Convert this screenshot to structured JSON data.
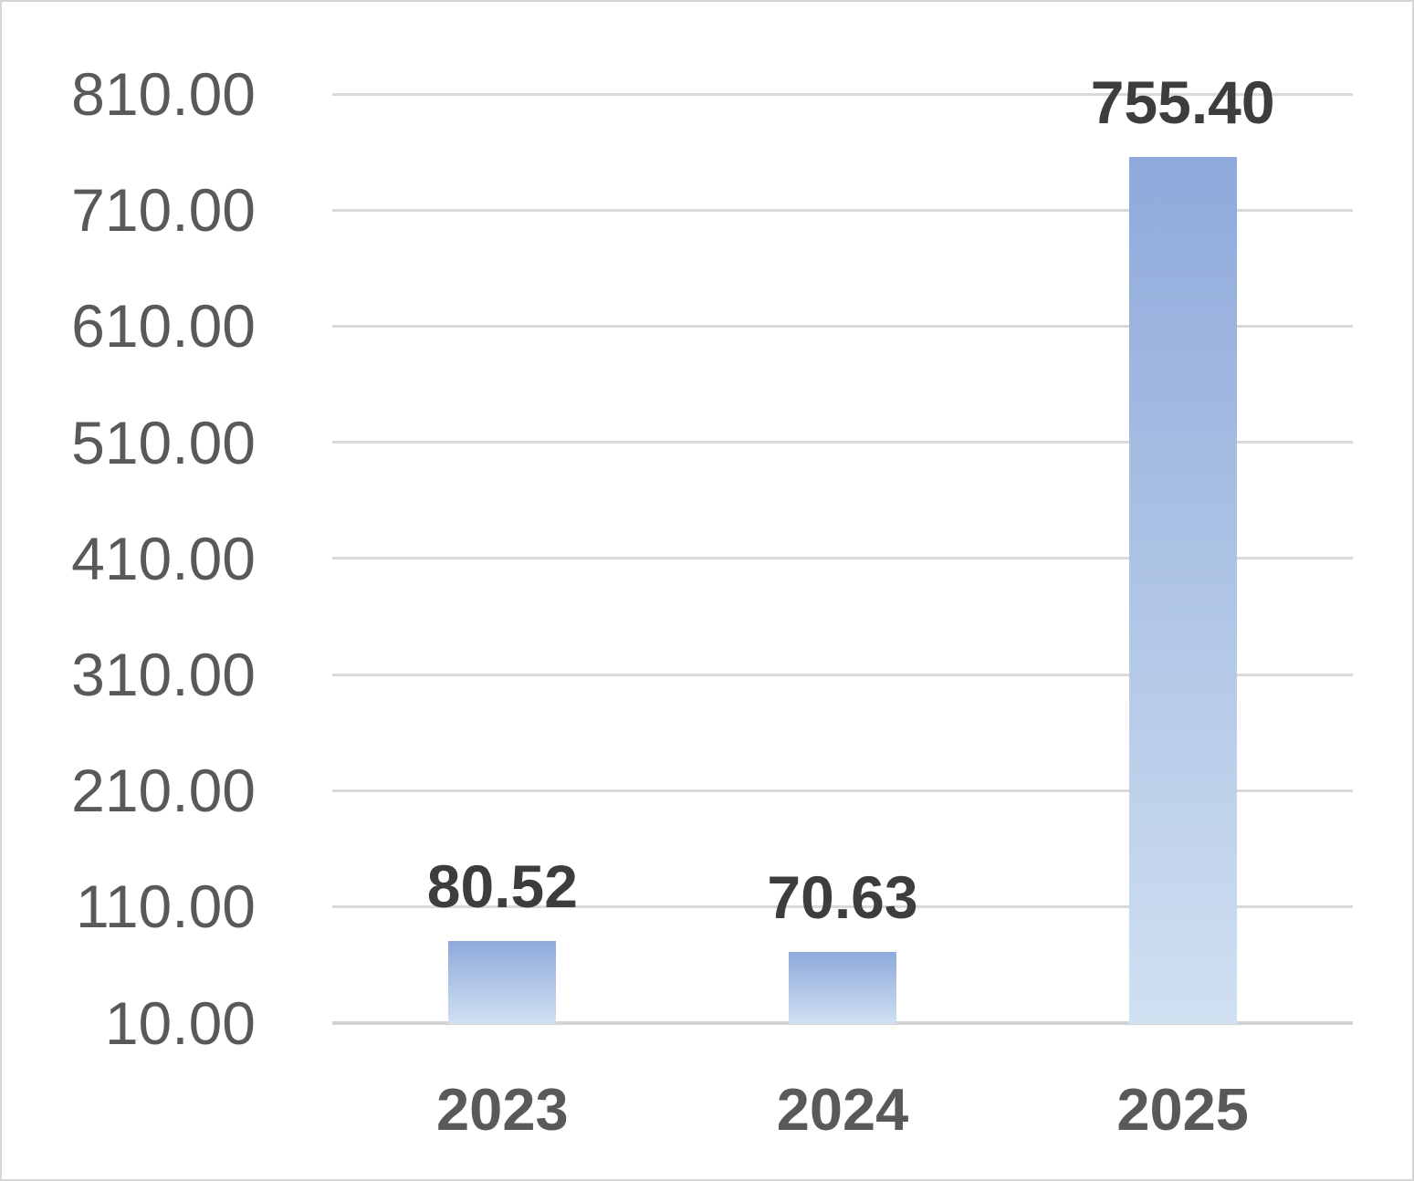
{
  "chart": {
    "colors": {
      "background": "#FFFFFF",
      "border_color": "#D5D5D5",
      "gridline_color": "#D9D9D9",
      "axis_line_color": "#D3D3D3",
      "bar_gradient_top": "#8EA9DB",
      "bar_gradient_bottom": "#D0E0F1",
      "axis_label_color": "#595959",
      "data_label_color": "#3D3D3D",
      "category_label_color": "#595959"
    }
  },
  "chart_data": {
    "type": "bar",
    "title": "",
    "xlabel": "",
    "ylabel": "",
    "categories": [
      "2023",
      "2024",
      "2025"
    ],
    "values": [
      80.52,
      70.63,
      755.4
    ],
    "data_labels": [
      "80.52",
      "70.63",
      "755.40"
    ],
    "yticks": [
      {
        "value": 810,
        "label": "810.00"
      },
      {
        "value": 710,
        "label": "710.00"
      },
      {
        "value": 610,
        "label": "610.00"
      },
      {
        "value": 510,
        "label": "510.00"
      },
      {
        "value": 410,
        "label": "410.00"
      },
      {
        "value": 310,
        "label": "310.00"
      },
      {
        "value": 210,
        "label": "210.00"
      },
      {
        "value": 110,
        "label": "110.00"
      },
      {
        "value": 10,
        "label": "10.00"
      }
    ],
    "ylim": [
      10,
      810
    ],
    "ytick_step": 100,
    "grid": true,
    "legend": false,
    "data_labels_position": "outside-end",
    "bar_fill": "vertical-gradient"
  }
}
